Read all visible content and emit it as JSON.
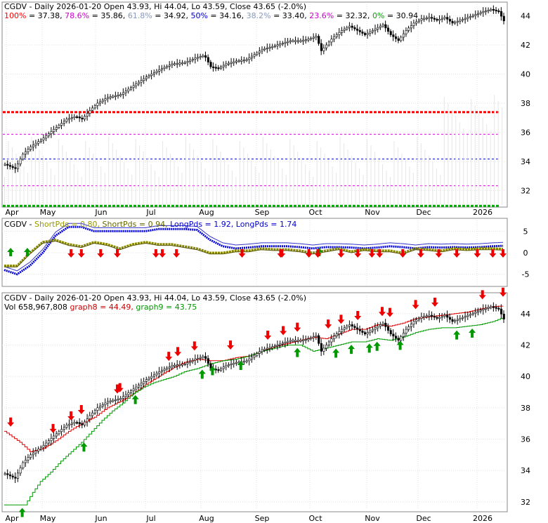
{
  "chart_data": [
    {
      "type": "candlestick",
      "legend": [
        {
          "text": "CGDV - Daily 2026-01-20 Open 43.93, Hi 44.04, Lo 43.59, Close 43.65 (-2.0%)",
          "color": "#000000"
        }
      ],
      "fib_legend": [
        {
          "label": "100%",
          "value": "= 37.38,",
          "color": "#ff0000"
        },
        {
          "label": "78.6%",
          "value": "= 35.86,",
          "color": "#cc00cc"
        },
        {
          "label": "61.8%",
          "value": "= 34.92,",
          "color": "#8899bb"
        },
        {
          "label": "50%",
          "value": "= 34.16,",
          "color": "#0000cc"
        },
        {
          "label": "38.2%",
          "value": "= 33.40,",
          "color": "#8899bb"
        },
        {
          "label": "23.6%",
          "value": "= 32.32,",
          "color": "#cc00cc"
        },
        {
          "label": "0%",
          "value": "= 30.94",
          "color": "#00aa00"
        }
      ],
      "fib_lines": [
        {
          "level": 37.38,
          "color": "#ff0000",
          "style": "dashed-thick"
        },
        {
          "level": 35.86,
          "color": "#cc00cc",
          "style": "dashed"
        },
        {
          "level": 34.16,
          "color": "#0000cc",
          "style": "dashed"
        },
        {
          "level": 32.32,
          "color": "#cc00cc",
          "style": "dashed"
        },
        {
          "level": 30.94,
          "color": "#00aa00",
          "style": "dashed-thick"
        }
      ],
      "ylim": [
        31,
        44.8
      ],
      "yticks": [
        32,
        34,
        36,
        38,
        40,
        42,
        44
      ],
      "close_path": [
        [
          0,
          33.8
        ],
        [
          8,
          33.5
        ],
        [
          14,
          34.5
        ],
        [
          20,
          35.0
        ],
        [
          30,
          35.6
        ],
        [
          38,
          36.2
        ],
        [
          48,
          36.9
        ],
        [
          55,
          37.1
        ],
        [
          60,
          36.9
        ],
        [
          66,
          37.5
        ],
        [
          72,
          38.0
        ],
        [
          80,
          38.4
        ],
        [
          90,
          38.6
        ],
        [
          100,
          39.2
        ],
        [
          110,
          39.8
        ],
        [
          120,
          40.3
        ],
        [
          130,
          40.7
        ],
        [
          140,
          40.8
        ],
        [
          148,
          41.1
        ],
        [
          155,
          41.3
        ],
        [
          160,
          40.5
        ],
        [
          166,
          40.4
        ],
        [
          172,
          40.7
        ],
        [
          180,
          40.9
        ],
        [
          188,
          41.0
        ],
        [
          195,
          41.4
        ],
        [
          200,
          41.7
        ],
        [
          208,
          41.9
        ],
        [
          215,
          42.1
        ],
        [
          222,
          42.3
        ],
        [
          230,
          42.3
        ],
        [
          236,
          42.4
        ],
        [
          242,
          42.6
        ],
        [
          246,
          41.6
        ],
        [
          250,
          42.0
        ],
        [
          255,
          42.5
        ],
        [
          262,
          43.0
        ],
        [
          268,
          43.3
        ],
        [
          274,
          43.0
        ],
        [
          280,
          42.7
        ],
        [
          288,
          43.1
        ],
        [
          294,
          43.4
        ],
        [
          300,
          42.7
        ],
        [
          306,
          42.3
        ],
        [
          312,
          43.0
        ],
        [
          318,
          43.5
        ],
        [
          324,
          43.8
        ],
        [
          330,
          43.9
        ],
        [
          336,
          43.7
        ],
        [
          342,
          43.9
        ],
        [
          348,
          43.5
        ],
        [
          354,
          43.7
        ],
        [
          360,
          43.9
        ],
        [
          366,
          44.1
        ],
        [
          372,
          44.3
        ],
        [
          378,
          44.45
        ],
        [
          384,
          44.3
        ],
        [
          388,
          43.65
        ]
      ],
      "ma_line": {
        "color": "#dd0000",
        "values": [
          [
            0,
            36.5
          ],
          [
            12,
            35.8
          ],
          [
            20,
            35.2
          ],
          [
            30,
            35.4
          ],
          [
            40,
            35.9
          ],
          [
            50,
            36.5
          ],
          [
            60,
            37.0
          ],
          [
            70,
            37.4
          ],
          [
            80,
            38.0
          ],
          [
            90,
            38.4
          ],
          [
            100,
            38.9
          ],
          [
            110,
            39.5
          ],
          [
            120,
            40.0
          ],
          [
            130,
            40.5
          ],
          [
            140,
            40.9
          ],
          [
            150,
            41.1
          ],
          [
            160,
            41.0
          ],
          [
            170,
            41.0
          ],
          [
            180,
            41.2
          ],
          [
            190,
            41.3
          ],
          [
            200,
            41.6
          ],
          [
            210,
            41.9
          ],
          [
            220,
            42.1
          ],
          [
            230,
            42.3
          ],
          [
            240,
            42.5
          ],
          [
            250,
            42.4
          ],
          [
            260,
            42.7
          ],
          [
            270,
            43.0
          ],
          [
            280,
            43.0
          ],
          [
            290,
            43.3
          ],
          [
            300,
            43.2
          ],
          [
            310,
            43.4
          ],
          [
            320,
            43.7
          ],
          [
            330,
            43.8
          ],
          [
            340,
            43.9
          ],
          [
            350,
            44.0
          ],
          [
            360,
            44.1
          ],
          [
            370,
            44.3
          ],
          [
            380,
            44.45
          ],
          [
            388,
            44.49
          ]
        ]
      },
      "stop_line": {
        "color": "#009900",
        "values": [
          [
            0,
            31.8
          ],
          [
            10,
            31.8
          ],
          [
            16,
            31.8
          ],
          [
            22,
            32.6
          ],
          [
            28,
            33.3
          ],
          [
            36,
            33.9
          ],
          [
            44,
            34.6
          ],
          [
            52,
            35.2
          ],
          [
            60,
            35.8
          ],
          [
            68,
            36.5
          ],
          [
            76,
            37.2
          ],
          [
            84,
            37.8
          ],
          [
            92,
            38.3
          ],
          [
            100,
            38.9
          ],
          [
            108,
            39.3
          ],
          [
            116,
            39.6
          ],
          [
            124,
            39.8
          ],
          [
            132,
            40.0
          ],
          [
            140,
            40.3
          ],
          [
            150,
            40.5
          ],
          [
            160,
            40.8
          ],
          [
            170,
            41.0
          ],
          [
            180,
            41.1
          ],
          [
            190,
            41.3
          ],
          [
            200,
            41.6
          ],
          [
            210,
            41.8
          ],
          [
            220,
            42.0
          ],
          [
            230,
            42.0
          ],
          [
            240,
            41.6
          ],
          [
            250,
            41.8
          ],
          [
            260,
            42.0
          ],
          [
            270,
            42.2
          ],
          [
            280,
            42.2
          ],
          [
            290,
            42.4
          ],
          [
            300,
            42.3
          ],
          [
            310,
            42.5
          ],
          [
            320,
            42.8
          ],
          [
            330,
            43.0
          ],
          [
            340,
            43.1
          ],
          [
            350,
            43.1
          ],
          [
            360,
            43.2
          ],
          [
            370,
            43.3
          ],
          [
            380,
            43.5
          ],
          [
            388,
            43.75
          ]
        ]
      },
      "x_labels": [
        "Apr",
        "May",
        "Jun",
        "Jul",
        "Aug",
        "Sep",
        "Oct",
        "Nov",
        "Dec",
        "2026"
      ]
    },
    {
      "type": "line",
      "legend": [
        {
          "text": "CGDV - ",
          "color": "#000000"
        },
        {
          "text": "ShortPds = 0.80, ",
          "color": "#999900"
        },
        {
          "text": "ShortPds = 0.94, ",
          "color": "#666600"
        },
        {
          "text": "LongPds = 1.92, ",
          "color": "#0000cc"
        },
        {
          "text": "LongPds = 1.74",
          "color": "#0000cc"
        }
      ],
      "ylim": [
        -7.5,
        7.5
      ],
      "yticks": [
        5,
        0,
        -5
      ],
      "series": [
        {
          "color": "#0000dd",
          "width": 3,
          "values": [
            [
              0,
              -4
            ],
            [
              10,
              -5
            ],
            [
              20,
              -3
            ],
            [
              30,
              0
            ],
            [
              40,
              4
            ],
            [
              50,
              6
            ],
            [
              60,
              6
            ],
            [
              70,
              5
            ],
            [
              80,
              5
            ],
            [
              90,
              5
            ],
            [
              100,
              5
            ],
            [
              110,
              5
            ],
            [
              120,
              5.5
            ],
            [
              130,
              5.5
            ],
            [
              140,
              5.5
            ],
            [
              150,
              5.3
            ],
            [
              160,
              3
            ],
            [
              170,
              1.5
            ],
            [
              180,
              1
            ],
            [
              190,
              1.2
            ],
            [
              200,
              1.5
            ],
            [
              210,
              1.5
            ],
            [
              220,
              1.5
            ],
            [
              230,
              1.3
            ],
            [
              240,
              1
            ],
            [
              250,
              1.3
            ],
            [
              260,
              1.3
            ],
            [
              270,
              1.2
            ],
            [
              280,
              1.0
            ],
            [
              290,
              1.2
            ],
            [
              300,
              1.5
            ],
            [
              310,
              1.3
            ],
            [
              320,
              1.0
            ],
            [
              330,
              1.3
            ],
            [
              340,
              1.2
            ],
            [
              350,
              1.3
            ],
            [
              360,
              1.2
            ],
            [
              370,
              1.3
            ],
            [
              380,
              1.5
            ],
            [
              388,
              1.6
            ]
          ]
        },
        {
          "color": "#888800",
          "width": 3,
          "values": [
            [
              0,
              -3
            ],
            [
              10,
              -3
            ],
            [
              20,
              0
            ],
            [
              30,
              2.5
            ],
            [
              40,
              3
            ],
            [
              50,
              2
            ],
            [
              60,
              1.5
            ],
            [
              70,
              2.5
            ],
            [
              80,
              2
            ],
            [
              90,
              1
            ],
            [
              100,
              2
            ],
            [
              110,
              2.5
            ],
            [
              120,
              2
            ],
            [
              130,
              2
            ],
            [
              140,
              1.5
            ],
            [
              150,
              1
            ],
            [
              160,
              0
            ],
            [
              170,
              0
            ],
            [
              180,
              0.5
            ],
            [
              190,
              0.5
            ],
            [
              200,
              1
            ],
            [
              210,
              0.8
            ],
            [
              220,
              0.8
            ],
            [
              230,
              0.5
            ],
            [
              240,
              0
            ],
            [
              250,
              0.5
            ],
            [
              260,
              1.0
            ],
            [
              270,
              0.3
            ],
            [
              280,
              0.8
            ],
            [
              290,
              0.5
            ],
            [
              300,
              0.5
            ],
            [
              310,
              0
            ],
            [
              320,
              1.0
            ],
            [
              330,
              0.8
            ],
            [
              340,
              0.5
            ],
            [
              350,
              1.0
            ],
            [
              360,
              0.8
            ],
            [
              370,
              1.0
            ],
            [
              380,
              1.0
            ],
            [
              388,
              0.9
            ]
          ]
        }
      ],
      "x_labels": [
        "Apr",
        "May",
        "Jun",
        "Jul",
        "Aug",
        "Sep",
        "Oct",
        "Nov",
        "Dec",
        "2026"
      ]
    },
    {
      "type": "candlestick",
      "legend": [
        {
          "text": "CGDV - Daily 2026-01-20 Open 43.93, Hi 44.04, Lo 43.59, Close 43.65 (-2.0%)",
          "color": "#000000"
        }
      ],
      "legend2": [
        {
          "text": "Vol 658,967,808 ",
          "color": "#000000"
        },
        {
          "text": "graph8 = 44.49, ",
          "color": "#cc0000"
        },
        {
          "text": "graph9 = 43.75",
          "color": "#009900"
        }
      ],
      "ylim": [
        31.5,
        45.2
      ],
      "yticks": [
        32,
        34,
        36,
        38,
        40,
        42,
        44
      ],
      "x_labels": [
        "Apr",
        "May",
        "Jun",
        "Jul",
        "Aug",
        "Sep",
        "Oct",
        "Nov",
        "Dec",
        "2026"
      ]
    }
  ]
}
